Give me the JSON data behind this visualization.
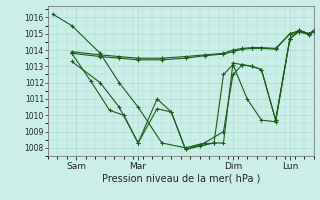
{
  "title": "Pression niveau de la mer( hPa )",
  "bg_color": "#cceee8",
  "line_color": "#1a5c1a",
  "grid_color": "#aaddcc",
  "ylim": [
    1007.5,
    1016.7
  ],
  "yticks": [
    1008,
    1009,
    1010,
    1011,
    1012,
    1013,
    1014,
    1015,
    1016
  ],
  "xlim": [
    0,
    280
  ],
  "xtick_positions": [
    30,
    95,
    195,
    255
  ],
  "xtick_labels": [
    "Sam",
    "Mar",
    "Dim",
    "Lun"
  ],
  "lines": [
    {
      "x": [
        5,
        25,
        55,
        75,
        95,
        120,
        145,
        165,
        185,
        195,
        205,
        215,
        225,
        240,
        255,
        265,
        275,
        280
      ],
      "y": [
        1016.2,
        1015.5,
        1013.8,
        1012.0,
        1010.5,
        1008.3,
        1008.0,
        1008.3,
        1009.0,
        1012.5,
        1013.1,
        1013.0,
        1012.8,
        1009.7,
        1014.7,
        1015.2,
        1015.0,
        1015.2
      ]
    },
    {
      "x": [
        25,
        55,
        75,
        95,
        120,
        145,
        165,
        185,
        195,
        205,
        215,
        225,
        240,
        255,
        265,
        275,
        280
      ],
      "y": [
        1013.9,
        1013.7,
        1013.6,
        1013.5,
        1013.5,
        1013.6,
        1013.7,
        1013.8,
        1014.0,
        1014.1,
        1014.15,
        1014.15,
        1014.1,
        1015.0,
        1015.2,
        1015.0,
        1015.15
      ]
    },
    {
      "x": [
        25,
        55,
        75,
        95,
        120,
        145,
        165,
        185,
        195,
        205,
        215,
        225,
        240,
        255,
        265,
        275,
        280
      ],
      "y": [
        1013.8,
        1013.6,
        1013.5,
        1013.4,
        1013.4,
        1013.5,
        1013.65,
        1013.75,
        1013.9,
        1014.05,
        1014.1,
        1014.1,
        1014.05,
        1015.0,
        1015.1,
        1014.95,
        1015.1
      ]
    },
    {
      "x": [
        25,
        55,
        75,
        95,
        115,
        130,
        145,
        160,
        175,
        185,
        195,
        205,
        215,
        225,
        240,
        255,
        265,
        275,
        280
      ],
      "y": [
        1013.3,
        1012.0,
        1010.5,
        1008.3,
        1010.4,
        1010.2,
        1007.9,
        1008.1,
        1008.3,
        1008.3,
        1013.2,
        1013.1,
        1013.0,
        1012.8,
        1009.7,
        1014.7,
        1015.2,
        1015.0,
        1015.15
      ]
    },
    {
      "x": [
        25,
        45,
        65,
        80,
        95,
        115,
        130,
        145,
        160,
        175,
        185,
        195,
        210,
        225,
        240,
        255,
        265,
        275,
        280
      ],
      "y": [
        1013.8,
        1012.1,
        1010.3,
        1010.0,
        1008.3,
        1011.0,
        1010.2,
        1007.9,
        1008.2,
        1008.3,
        1012.5,
        1013.1,
        1011.0,
        1009.7,
        1009.6,
        1014.7,
        1015.15,
        1015.0,
        1015.15
      ]
    }
  ]
}
